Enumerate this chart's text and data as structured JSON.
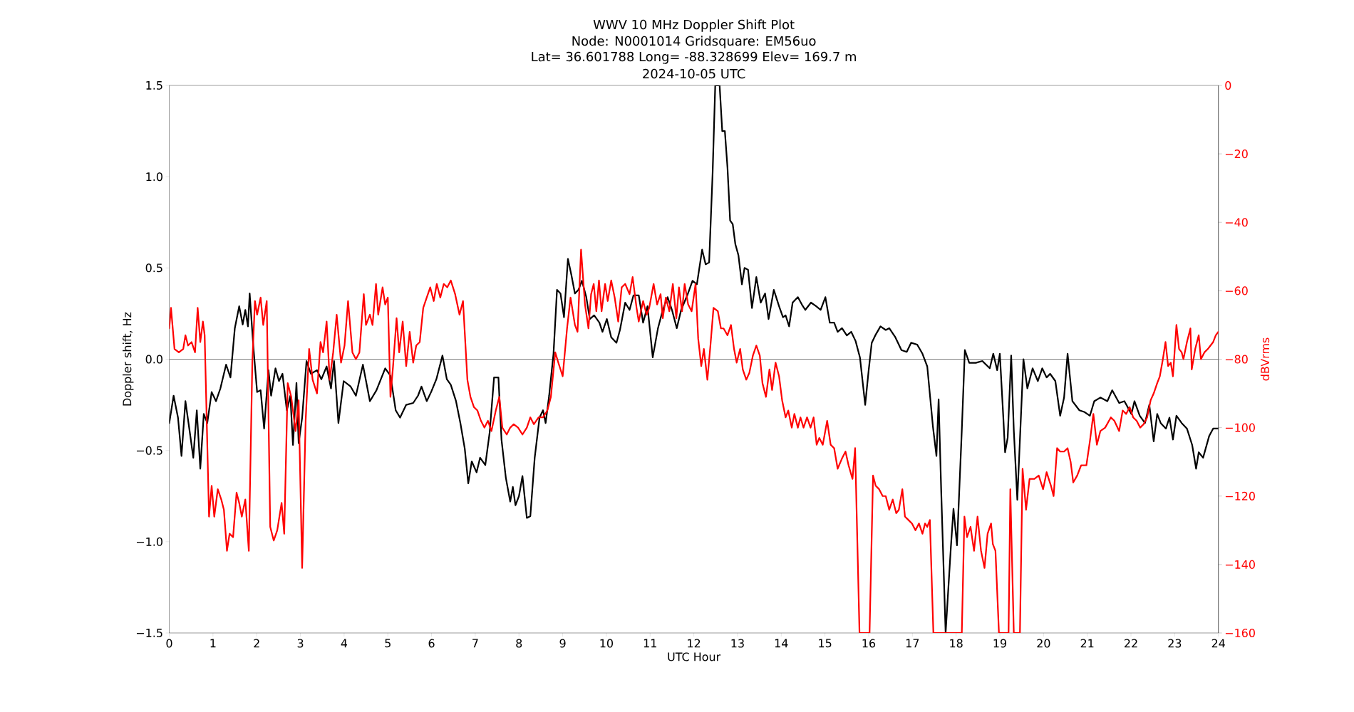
{
  "chart_data": {
    "type": "line",
    "title": "WWV 10 MHz Doppler Shift Plot",
    "subtitle": "Node:  N0001014     Gridsquare:  EM56uo",
    "annotations": [
      "Lat= 36.601788    Long= -88.328699    Elev= 169.7 m",
      "2024-10-05  UTC"
    ],
    "xlabel": "UTC Hour",
    "ylabel": "Doppler shift, Hz",
    "y2label": "dBVrms",
    "xlim": [
      0,
      24
    ],
    "xticks": [
      0,
      1,
      2,
      3,
      4,
      5,
      6,
      7,
      8,
      9,
      10,
      11,
      12,
      13,
      14,
      15,
      16,
      17,
      18,
      19,
      20,
      21,
      22,
      23,
      24
    ],
    "ylim": [
      -1.5,
      1.5
    ],
    "yticks": [
      {
        "value": -1.5,
        "label": "−1.5"
      },
      {
        "value": -1.0,
        "label": "−1.0"
      },
      {
        "value": -0.5,
        "label": "−0.5"
      },
      {
        "value": 0,
        "label": "0.0"
      },
      {
        "value": 0.5,
        "label": "0.5"
      },
      {
        "value": 1.0,
        "label": "1.0"
      },
      {
        "value": 1.5,
        "label": "1.5"
      }
    ],
    "y2lim": [
      -160,
      0
    ],
    "y2ticks": [
      {
        "value": -160,
        "label": "−160"
      },
      {
        "value": -140,
        "label": "−140"
      },
      {
        "value": -120,
        "label": "−120"
      },
      {
        "value": -100,
        "label": "−100"
      },
      {
        "value": -80,
        "label": "−80"
      },
      {
        "value": -60,
        "label": "−60"
      },
      {
        "value": -40,
        "label": "−40"
      },
      {
        "value": -20,
        "label": "−20"
      },
      0
    ],
    "marker": "none",
    "line_style": "solid",
    "ref_lines": [
      {
        "axis": "y",
        "value": 0,
        "color": "#808080"
      }
    ],
    "series": [
      {
        "color": "#000000",
        "axis": "y",
        "x": [
          0,
          0.1,
          0.2,
          0.28,
          0.37,
          0.47,
          0.55,
          0.63,
          0.71,
          0.79,
          0.87,
          0.97,
          1.07,
          1.17,
          1.3,
          1.4,
          1.5,
          1.6,
          1.68,
          1.74,
          1.8,
          1.84,
          1.92,
          2.01,
          2.09,
          2.17,
          2.27,
          2.33,
          2.43,
          2.51,
          2.59,
          2.69,
          2.77,
          2.83,
          2.91,
          2.96,
          3.04,
          3.14,
          3.24,
          3.38,
          3.48,
          3.6,
          3.7,
          3.77,
          3.87,
          3.99,
          4.15,
          4.27,
          4.43,
          4.59,
          4.74,
          4.94,
          5.06,
          5.18,
          5.28,
          5.42,
          5.58,
          5.69,
          5.77,
          5.89,
          5.99,
          6.11,
          6.25,
          6.35,
          6.44,
          6.56,
          6.66,
          6.76,
          6.84,
          6.92,
          7.03,
          7.11,
          7.23,
          7.33,
          7.43,
          7.53,
          7.6,
          7.7,
          7.8,
          7.86,
          7.92,
          8.0,
          8.08,
          8.18,
          8.26,
          8.36,
          8.47,
          8.55,
          8.61,
          8.69,
          8.79,
          8.87,
          8.95,
          9.03,
          9.12,
          9.2,
          9.28,
          9.36,
          9.44,
          9.54,
          9.62,
          9.72,
          9.84,
          9.91,
          10.01,
          10.11,
          10.23,
          10.31,
          10.43,
          10.53,
          10.62,
          10.74,
          10.84,
          10.94,
          11.06,
          11.18,
          11.29,
          11.4,
          11.5,
          11.61,
          11.71,
          11.85,
          11.97,
          12.07,
          12.19,
          12.27,
          12.35,
          12.43,
          12.49,
          12.59,
          12.65,
          12.71,
          12.77,
          12.83,
          12.89,
          12.95,
          13.02,
          13.1,
          13.16,
          13.24,
          13.33,
          13.43,
          13.53,
          13.63,
          13.71,
          13.83,
          13.95,
          14.04,
          14.1,
          14.18,
          14.26,
          14.38,
          14.47,
          14.55,
          14.68,
          14.8,
          14.9,
          15.01,
          15.11,
          15.21,
          15.29,
          15.39,
          15.5,
          15.6,
          15.7,
          15.8,
          15.92,
          16.0,
          16.07,
          16.15,
          16.27,
          16.39,
          16.47,
          16.61,
          16.75,
          16.87,
          16.97,
          17.11,
          17.23,
          17.34,
          17.47,
          17.55,
          17.6,
          17.66,
          17.76,
          17.88,
          17.94,
          18.02,
          18.13,
          18.2,
          18.3,
          18.45,
          18.6,
          18.77,
          18.85,
          18.94,
          19.0,
          19.08,
          19.12,
          19.18,
          19.26,
          19.32,
          19.4,
          19.54,
          19.63,
          19.75,
          19.87,
          19.97,
          20.07,
          20.15,
          20.27,
          20.38,
          20.47,
          20.55,
          20.66,
          20.82,
          20.94,
          21.06,
          21.16,
          21.3,
          21.46,
          21.57,
          21.73,
          21.85,
          22.01,
          22.08,
          22.2,
          22.32,
          22.42,
          22.52,
          22.6,
          22.68,
          22.8,
          22.88,
          22.96,
          23.04,
          23.16,
          23.28,
          23.4,
          23.49,
          23.55,
          23.65,
          23.79,
          23.88,
          24
        ],
        "values": [
          -0.35,
          -0.2,
          -0.32,
          -0.53,
          -0.23,
          -0.4,
          -0.54,
          -0.28,
          -0.6,
          -0.3,
          -0.35,
          -0.18,
          -0.23,
          -0.16,
          -0.03,
          -0.1,
          0.17,
          0.29,
          0.19,
          0.27,
          0.18,
          0.36,
          0.08,
          -0.18,
          -0.17,
          -0.38,
          -0.06,
          -0.2,
          -0.05,
          -0.12,
          -0.08,
          -0.28,
          -0.2,
          -0.47,
          -0.13,
          -0.46,
          -0.32,
          -0.01,
          -0.08,
          -0.06,
          -0.11,
          -0.04,
          -0.16,
          -0.01,
          -0.35,
          -0.12,
          -0.15,
          -0.2,
          -0.03,
          -0.23,
          -0.17,
          -0.05,
          -0.09,
          -0.28,
          -0.32,
          -0.25,
          -0.24,
          -0.2,
          -0.15,
          -0.23,
          -0.18,
          -0.11,
          0.02,
          -0.11,
          -0.14,
          -0.23,
          -0.35,
          -0.49,
          -0.68,
          -0.56,
          -0.62,
          -0.54,
          -0.58,
          -0.4,
          -0.1,
          -0.1,
          -0.44,
          -0.65,
          -0.78,
          -0.7,
          -0.8,
          -0.75,
          -0.64,
          -0.87,
          -0.86,
          -0.54,
          -0.32,
          -0.28,
          -0.35,
          -0.2,
          0.03,
          0.38,
          0.36,
          0.23,
          0.55,
          0.46,
          0.36,
          0.38,
          0.43,
          0.34,
          0.22,
          0.24,
          0.2,
          0.15,
          0.22,
          0.12,
          0.09,
          0.16,
          0.31,
          0.27,
          0.35,
          0.35,
          0.2,
          0.29,
          0.01,
          0.17,
          0.27,
          0.34,
          0.27,
          0.17,
          0.27,
          0.35,
          0.43,
          0.41,
          0.6,
          0.52,
          0.53,
          1.02,
          1.5,
          1.5,
          1.25,
          1.25,
          1.05,
          0.76,
          0.74,
          0.63,
          0.57,
          0.41,
          0.5,
          0.49,
          0.28,
          0.45,
          0.31,
          0.36,
          0.22,
          0.38,
          0.29,
          0.23,
          0.24,
          0.18,
          0.31,
          0.34,
          0.3,
          0.27,
          0.31,
          0.29,
          0.27,
          0.34,
          0.2,
          0.2,
          0.15,
          0.17,
          0.13,
          0.15,
          0.1,
          0.01,
          -0.25,
          -0.06,
          0.09,
          0.13,
          0.18,
          0.16,
          0.17,
          0.12,
          0.05,
          0.04,
          0.09,
          0.08,
          0.03,
          -0.04,
          -0.37,
          -0.53,
          -0.22,
          -0.73,
          -1.5,
          -1.03,
          -0.82,
          -1.02,
          -0.39,
          0.05,
          -0.02,
          -0.02,
          -0.01,
          -0.05,
          0.03,
          -0.06,
          0.03,
          -0.32,
          -0.51,
          -0.43,
          0.02,
          -0.39,
          -0.77,
          0.0,
          -0.16,
          -0.05,
          -0.12,
          -0.05,
          -0.1,
          -0.08,
          -0.12,
          -0.31,
          -0.21,
          0.03,
          -0.23,
          -0.28,
          -0.29,
          -0.31,
          -0.23,
          -0.21,
          -0.23,
          -0.17,
          -0.24,
          -0.23,
          -0.3,
          -0.23,
          -0.31,
          -0.35,
          -0.25,
          -0.45,
          -0.3,
          -0.35,
          -0.38,
          -0.32,
          -0.44,
          -0.31,
          -0.35,
          -0.38,
          -0.47,
          -0.6,
          -0.51,
          -0.54,
          -0.42,
          -0.38,
          -0.38
        ]
      },
      {
        "color": "#ff0000",
        "axis": "y2",
        "x": [
          0,
          0.04,
          0.12,
          0.22,
          0.32,
          0.37,
          0.43,
          0.51,
          0.59,
          0.65,
          0.71,
          0.77,
          0.81,
          0.91,
          0.97,
          1.03,
          1.11,
          1.19,
          1.25,
          1.32,
          1.38,
          1.46,
          1.54,
          1.6,
          1.66,
          1.74,
          1.82,
          1.9,
          1.96,
          2.01,
          2.09,
          2.15,
          2.23,
          2.31,
          2.39,
          2.47,
          2.57,
          2.63,
          2.71,
          2.79,
          2.89,
          2.96,
          3.04,
          3.12,
          3.2,
          3.28,
          3.38,
          3.46,
          3.52,
          3.6,
          3.67,
          3.75,
          3.83,
          3.93,
          4.01,
          4.09,
          4.19,
          4.27,
          4.35,
          4.45,
          4.5,
          4.59,
          4.65,
          4.73,
          4.78,
          4.88,
          4.94,
          5.0,
          5.06,
          5.12,
          5.2,
          5.26,
          5.34,
          5.42,
          5.5,
          5.58,
          5.65,
          5.73,
          5.81,
          5.89,
          5.97,
          6.05,
          6.12,
          6.2,
          6.28,
          6.36,
          6.44,
          6.54,
          6.64,
          6.72,
          6.82,
          6.89,
          6.97,
          7.05,
          7.13,
          7.21,
          7.29,
          7.37,
          7.47,
          7.55,
          7.62,
          7.72,
          7.8,
          7.88,
          7.98,
          8.08,
          8.18,
          8.26,
          8.34,
          8.45,
          8.55,
          8.65,
          8.73,
          8.83,
          8.9,
          9.0,
          9.1,
          9.18,
          9.28,
          9.34,
          9.42,
          9.51,
          9.59,
          9.65,
          9.71,
          9.77,
          9.83,
          9.89,
          9.97,
          10.03,
          10.11,
          10.19,
          10.27,
          10.35,
          10.43,
          10.53,
          10.6,
          10.69,
          10.74,
          10.84,
          10.92,
          10.98,
          11.08,
          11.16,
          11.24,
          11.29,
          11.36,
          11.44,
          11.52,
          11.6,
          11.66,
          11.73,
          11.79,
          11.87,
          11.95,
          12.04,
          12.1,
          12.17,
          12.23,
          12.31,
          12.38,
          12.45,
          12.55,
          12.62,
          12.68,
          12.77,
          12.85,
          12.92,
          12.98,
          13.06,
          13.12,
          13.2,
          13.27,
          13.35,
          13.43,
          13.51,
          13.57,
          13.65,
          13.73,
          13.79,
          13.87,
          13.95,
          14.02,
          14.1,
          14.16,
          14.24,
          14.3,
          14.38,
          14.44,
          14.51,
          14.59,
          14.67,
          14.74,
          14.81,
          14.87,
          14.95,
          15.05,
          15.13,
          15.21,
          15.29,
          15.39,
          15.47,
          15.54,
          15.63,
          15.69,
          15.79,
          16.02,
          16.1,
          16.16,
          16.24,
          16.32,
          16.39,
          16.47,
          16.55,
          16.63,
          16.69,
          16.77,
          16.83,
          16.91,
          16.99,
          17.07,
          17.15,
          17.23,
          17.29,
          17.34,
          17.4,
          17.48,
          18.13,
          18.19,
          18.25,
          18.33,
          18.41,
          18.49,
          18.57,
          18.65,
          18.72,
          18.8,
          18.84,
          18.9,
          18.98,
          19.2,
          19.24,
          19.32,
          19.46,
          19.52,
          19.6,
          19.68,
          19.79,
          19.89,
          19.99,
          20.07,
          20.17,
          20.23,
          20.31,
          20.38,
          20.47,
          20.55,
          20.62,
          20.68,
          20.77,
          20.86,
          20.98,
          21.06,
          21.14,
          21.22,
          21.3,
          21.41,
          21.54,
          21.62,
          21.73,
          21.81,
          21.89,
          21.97,
          22.05,
          22.13,
          22.21,
          22.29,
          22.37,
          22.45,
          22.52,
          22.6,
          22.66,
          22.73,
          22.79,
          22.85,
          22.91,
          22.96,
          23.04,
          23.1,
          23.16,
          23.2,
          23.28,
          23.36,
          23.39,
          23.47,
          23.55,
          23.6,
          23.68,
          23.76,
          23.82,
          23.88,
          23.94,
          24
        ],
        "values": [
          -71,
          -65,
          -77,
          -78,
          -77,
          -73,
          -76,
          -75,
          -78,
          -65,
          -75,
          -69,
          -73,
          -126,
          -117,
          -126,
          -118,
          -121,
          -124,
          -136,
          -131,
          -132,
          -119,
          -122,
          -126,
          -121,
          -136,
          -81,
          -63,
          -67,
          -62,
          -70,
          -63,
          -129,
          -133,
          -130,
          -122,
          -131,
          -87,
          -91,
          -101,
          -92,
          -141,
          -98,
          -77,
          -86,
          -90,
          -75,
          -78,
          -69,
          -86,
          -78,
          -67,
          -81,
          -76,
          -63,
          -78,
          -80,
          -78,
          -61,
          -70,
          -67,
          -70,
          -58,
          -67,
          -59,
          -64,
          -62,
          -91,
          -82,
          -68,
          -78,
          -69,
          -82,
          -72,
          -81,
          -76,
          -75,
          -65,
          -62,
          -59,
          -63,
          -58,
          -62,
          -58,
          -59,
          -57,
          -61,
          -67,
          -63,
          -86,
          -91,
          -94,
          -95,
          -98,
          -100,
          -98,
          -101,
          -95,
          -91,
          -100,
          -102,
          -100,
          -99,
          -100,
          -102,
          -100,
          -97,
          -99,
          -97,
          -97,
          -95,
          -91,
          -78,
          -81,
          -85,
          -71,
          -62,
          -70,
          -72,
          -48,
          -64,
          -71,
          -61,
          -58,
          -66,
          -57,
          -66,
          -58,
          -63,
          -57,
          -62,
          -69,
          -59,
          -58,
          -61,
          -56,
          -65,
          -69,
          -63,
          -67,
          -65,
          -58,
          -64,
          -61,
          -68,
          -62,
          -66,
          -58,
          -68,
          -59,
          -66,
          -58,
          -64,
          -66,
          -58,
          -74,
          -82,
          -77,
          -86,
          -76,
          -65,
          -66,
          -71,
          -71,
          -73,
          -70,
          -77,
          -81,
          -77,
          -83,
          -86,
          -84,
          -79,
          -76,
          -79,
          -87,
          -91,
          -83,
          -89,
          -81,
          -85,
          -92,
          -97,
          -95,
          -100,
          -96,
          -100,
          -97,
          -100,
          -97,
          -100,
          -97,
          -105,
          -103,
          -105,
          -98,
          -105,
          -106,
          -112,
          -109,
          -107,
          -111,
          -115,
          -106,
          -160,
          -160,
          -114,
          -117,
          -118,
          -120,
          -120,
          -124,
          -121,
          -125,
          -124,
          -118,
          -126,
          -127,
          -128,
          -130,
          -128,
          -131,
          -128,
          -129,
          -127,
          -160,
          -160,
          -126,
          -132,
          -129,
          -136,
          -126,
          -136,
          -141,
          -131,
          -128,
          -134,
          -136,
          -160,
          -160,
          -118,
          -160,
          -160,
          -112,
          -124,
          -115,
          -115,
          -114,
          -118,
          -113,
          -117,
          -120,
          -106,
          -107,
          -107,
          -106,
          -110,
          -116,
          -114,
          -111,
          -111,
          -104,
          -96,
          -105,
          -101,
          -100,
          -97,
          -98,
          -101,
          -95,
          -96,
          -94,
          -97,
          -98,
          -100,
          -99,
          -97,
          -92,
          -90,
          -87,
          -85,
          -80,
          -75,
          -82,
          -81,
          -85,
          -70,
          -77,
          -78,
          -80,
          -75,
          -71,
          -83,
          -77,
          -73,
          -80,
          -78,
          -77,
          -76,
          -75,
          -73,
          -72
        ]
      }
    ]
  }
}
